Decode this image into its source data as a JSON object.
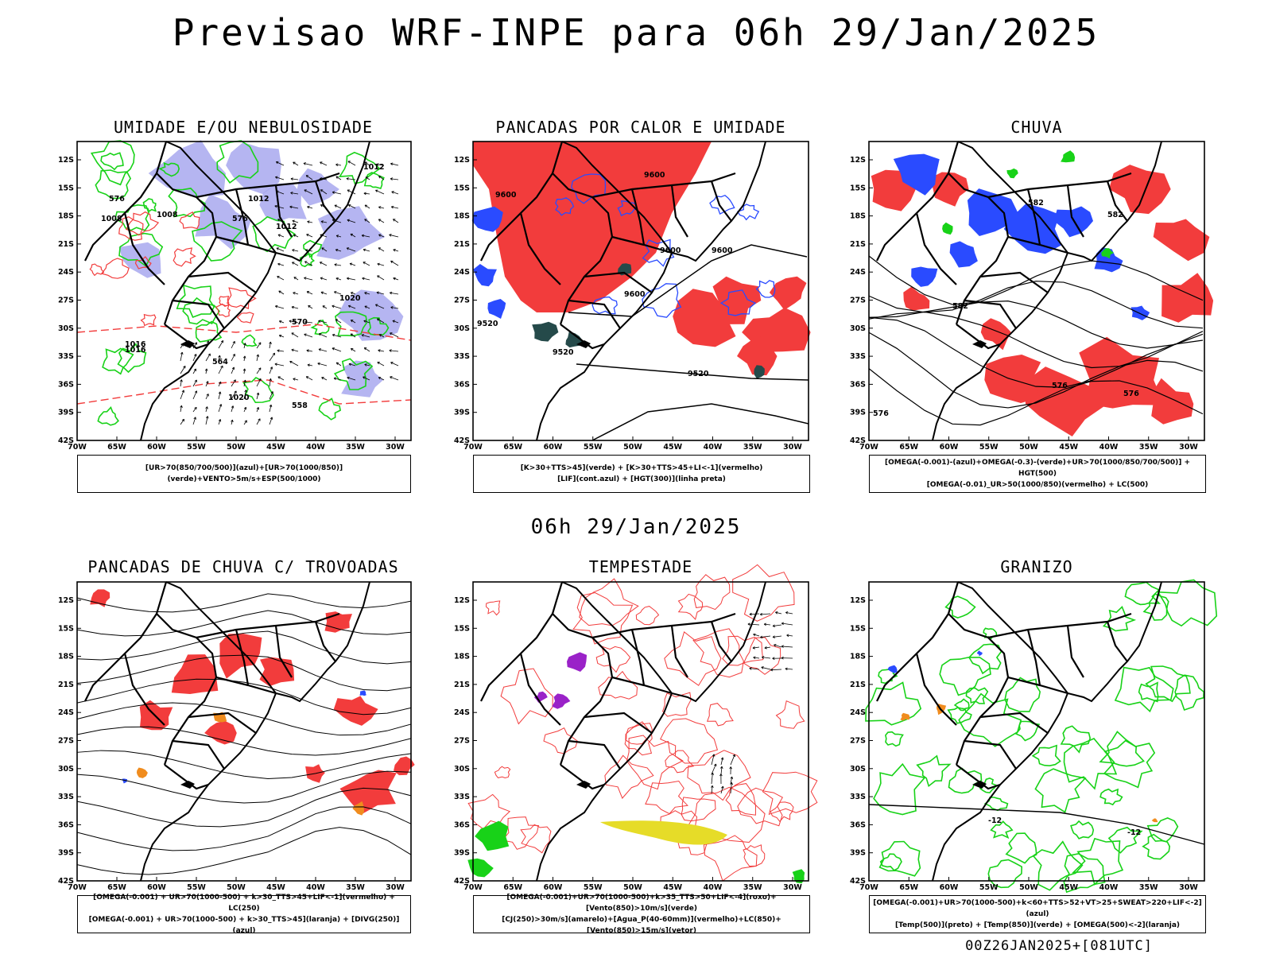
{
  "header": {
    "title": "Previsao WRF-INPE  para 06h 29/Jan/2025"
  },
  "middle": {
    "title": "06h 29/Jan/2025"
  },
  "footer": {
    "run": "00Z26JAN2025+[081UTC]"
  },
  "axes": {
    "lat_ticks": [
      "12S",
      "15S",
      "18S",
      "21S",
      "24S",
      "27S",
      "30S",
      "33S",
      "36S",
      "39S",
      "42S"
    ],
    "lon_ticks": [
      "70W",
      "65W",
      "60W",
      "55W",
      "50W",
      "45W",
      "40W",
      "35W",
      "30W"
    ]
  },
  "colors": {
    "red": "#f23c3c",
    "blue": "#2a4bff",
    "green": "#18d218",
    "lavender": "#a8a8ee",
    "teal": "#254a4a",
    "purple": "#9a22c8",
    "orange": "#f08c1e",
    "yellow": "#e6dc28"
  },
  "panels": [
    {
      "id": "umidade",
      "title": "UMIDADE E/OU NEBULOSIDADE",
      "legend": [
        "[UR>70(850/700/500)](azul)+[UR>70(1000/850)](verde)+VENTO>5m/s+ESP(500/1000)"
      ],
      "labels": [
        "1008",
        "1012",
        "1012",
        "1016",
        "1016",
        "1020",
        "1020",
        "1008",
        "576",
        "576",
        "570",
        "564",
        "558",
        "1012"
      ]
    },
    {
      "id": "pancadas-calor",
      "title": "PANCADAS POR CALOR E UMIDADE",
      "legend": [
        "[K>30+TTS>45](verde) + [K>30+TTS>45+LI<-1](vermelho)",
        "[LIF](cont.azul) + [HGT(300)](linha preta)"
      ],
      "labels": [
        "9600",
        "9600",
        "9600",
        "9600",
        "9520",
        "9520",
        "9520",
        "9600"
      ]
    },
    {
      "id": "chuva",
      "title": "CHUVA",
      "legend": [
        "[OMEGA(-0.001)-(azul)+OMEGA(-0.3)-(verde)+UR>70(1000/850/700/500)] + HGT(500)",
        "[OMEGA(-0.01)_UR>50(1000/850)(vermelho) + LC(500)"
      ],
      "labels": [
        "582",
        "582",
        "582",
        "576",
        "576",
        "576"
      ]
    },
    {
      "id": "trovoadas",
      "title": "PANCADAS DE CHUVA C/ TROVOADAS",
      "legend": [
        "[OMEGA(-0.001) + UR>70(1000-500) + k>30_TTS>45+LIF<-1](vermelho) + LC(250)",
        "[OMEGA(-0.001) + UR>70(1000-500) + k>30_TTS>45](laranja) + [DIVG(250)](azul)"
      ],
      "labels": []
    },
    {
      "id": "tempestade",
      "title": "TEMPESTADE",
      "legend": [
        "[OMEGA(-0.001)+UR>70(1000-500)+k>35_TTS>50+LIF<-4](roxo)+[Vento(850)>10m/s](verde)",
        "[CJ(250)>30m/s](amarelo)+[Agua_P(40-60mm)](vermelho)+LC(850)+[Vento(850)>15m/s](vetor)"
      ],
      "labels": []
    },
    {
      "id": "granizo",
      "title": "GRANIZO",
      "legend": [
        "[OMEGA(-0.001)+UR>70(1000-500)+k<60+TTS>52+VT>25+SWEAT>220+LIF<-2](azul)",
        "[Temp(500)](preto) + [Temp(850)](verde) + [OMEGA(500)<-2](laranja)"
      ],
      "labels": [
        "-12",
        "-12"
      ]
    }
  ]
}
